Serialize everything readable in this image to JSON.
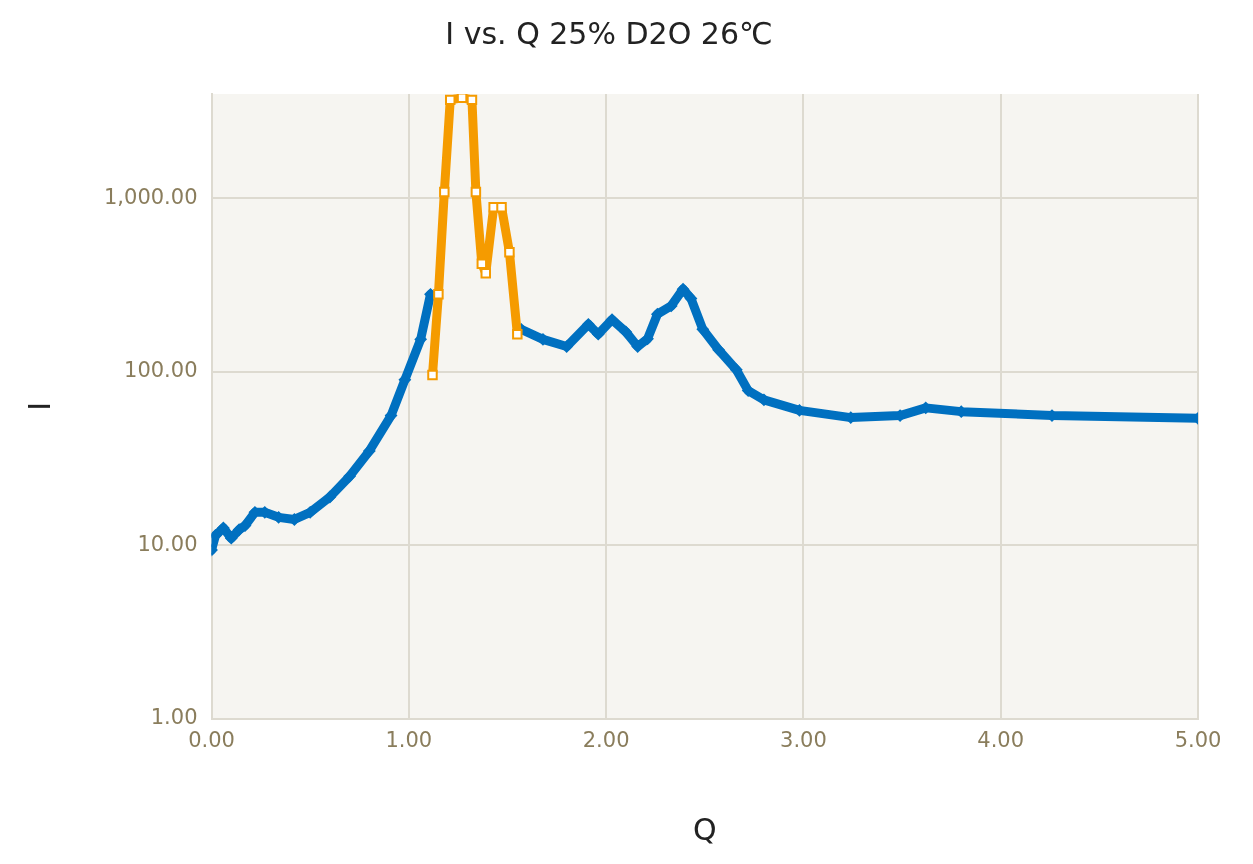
{
  "chart_data": {
    "type": "line",
    "title": "I vs. Q 25% D2O 26℃",
    "xlabel": "Q",
    "ylabel": "I",
    "log": "y",
    "grid": true,
    "legend": false,
    "xlim": [
      0,
      5
    ],
    "xticks": [
      {
        "value": 0,
        "label": "0.00"
      },
      {
        "value": 1,
        "label": "1.00"
      },
      {
        "value": 2,
        "label": "2.00"
      },
      {
        "value": 3,
        "label": "3.00"
      },
      {
        "value": 4,
        "label": "4.00"
      },
      {
        "value": 5,
        "label": "5.00"
      }
    ],
    "ylim": [
      1,
      4000
    ],
    "yticks": [
      {
        "value": 1,
        "label": "1.00"
      },
      {
        "value": 10,
        "label": "10.00"
      },
      {
        "value": 100,
        "label": "100.00"
      },
      {
        "value": 1000,
        "label": "1,000.00"
      }
    ],
    "series": [
      {
        "color": "#0070c0",
        "marker": "diamond",
        "x": [
          0,
          0.02,
          0.06,
          0.1,
          0.14,
          0.17,
          0.22,
          0.27,
          0.34,
          0.42,
          0.5,
          0.6,
          0.7,
          0.8,
          0.91,
          0.98,
          1.06,
          1.11,
          1.15,
          1.18,
          1.21,
          1.27,
          1.32,
          1.34,
          1.37,
          1.39,
          1.43,
          1.47,
          1.51,
          1.57,
          1.68,
          1.8,
          1.91,
          1.96,
          2.03,
          2.1,
          2.16,
          2.21,
          2.26,
          2.33,
          2.39,
          2.43,
          2.49,
          2.57,
          2.66,
          2.72,
          2.8,
          2.98,
          3.24,
          3.49,
          3.62,
          3.8,
          4.26,
          5
        ],
        "values": [
          9.4,
          11.4,
          12.6,
          11,
          12.3,
          13,
          15.5,
          15.5,
          14.5,
          14.1,
          15.5,
          19,
          25,
          35,
          56,
          90,
          154,
          280,
          null,
          null,
          null,
          null,
          null,
          null,
          null,
          null,
          null,
          null,
          null,
          176,
          154,
          140,
          188,
          165,
          200,
          170,
          140,
          155,
          215,
          240,
          300,
          265,
          176,
          134,
          103,
          78,
          69,
          60,
          54.5,
          56,
          62,
          59,
          56,
          54
        ]
      },
      {
        "color": "#f59b00",
        "marker": "square",
        "x": [
          1.12,
          1.15,
          1.18,
          1.21,
          1.27,
          1.32,
          1.34,
          1.37,
          1.39,
          1.43,
          1.47,
          1.51,
          1.55
        ],
        "values": [
          96,
          280,
          1090,
          3700,
          3800,
          3700,
          1090,
          420,
          370,
          890,
          890,
          490,
          165
        ]
      }
    ]
  }
}
